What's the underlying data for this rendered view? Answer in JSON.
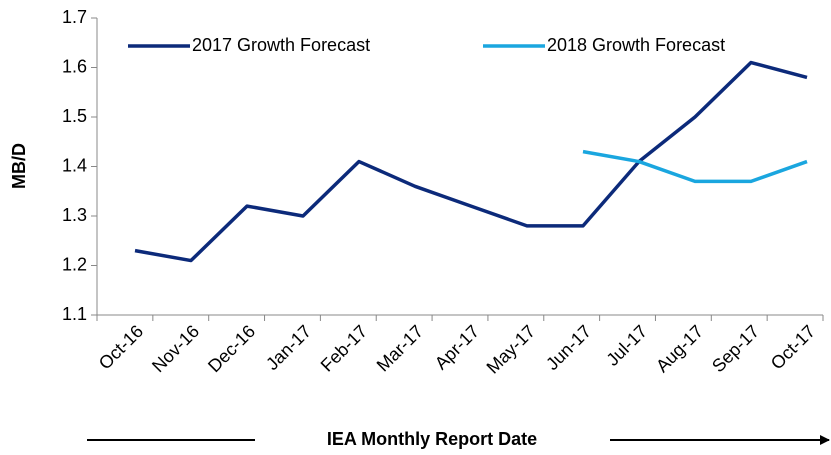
{
  "chart_data": {
    "type": "line",
    "ylabel": "MB/D",
    "xlabel": "IEA Monthly Report Date",
    "categories": [
      "Oct-16",
      "Nov-16",
      "Dec-16",
      "Jan-17",
      "Feb-17",
      "Mar-17",
      "Apr-17",
      "May-17",
      "Jun-17",
      "Jul-17",
      "Aug-17",
      "Sep-17",
      "Oct-17"
    ],
    "series": [
      {
        "name": "2017 Growth Forecast",
        "color": "#0c2a7a",
        "values": [
          1.23,
          1.21,
          1.32,
          1.3,
          1.41,
          1.36,
          1.32,
          1.28,
          1.28,
          1.41,
          1.5,
          1.61,
          1.58
        ]
      },
      {
        "name": "2018 Growth Forecast",
        "color": "#1aa6df",
        "values": [
          null,
          null,
          null,
          null,
          null,
          null,
          null,
          null,
          1.43,
          1.41,
          1.37,
          1.37,
          1.41
        ]
      }
    ],
    "ylim": [
      1.1,
      1.7
    ],
    "yticks": [
      1.1,
      1.2,
      1.3,
      1.4,
      1.5,
      1.6,
      1.7
    ],
    "legend": "top"
  }
}
